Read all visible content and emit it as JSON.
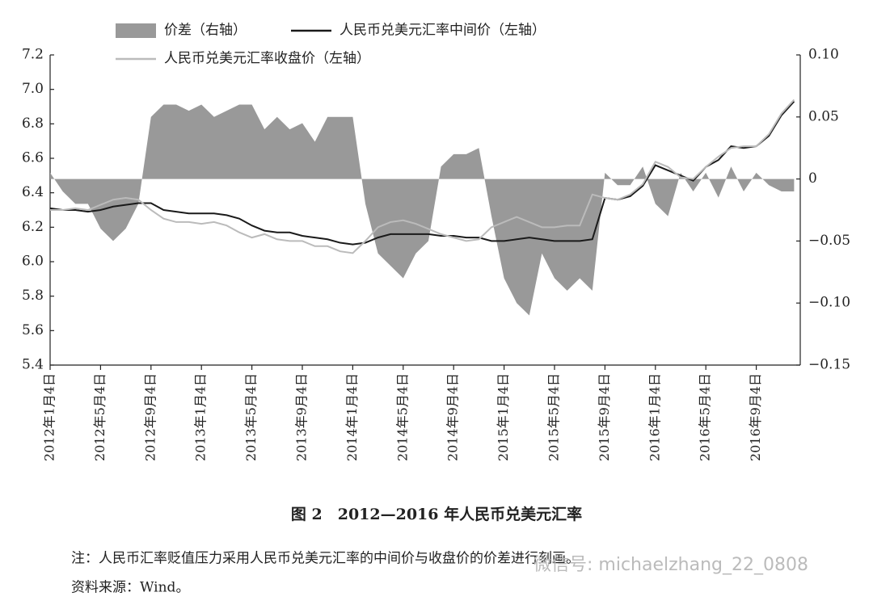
{
  "chart_data": {
    "type": "line",
    "title": "图 2　2012—2016 年人民币兑美元汇率",
    "note": "注：人民币汇率贬值压力采用人民币兑美元汇率的中间价与收盘价的价差进行刻画。",
    "source": "资料来源：Wind。",
    "watermark": "微信号: michaelzhang_22_0808",
    "categories": [
      "2012年1月4日",
      null,
      null,
      null,
      "2012年5月4日",
      null,
      null,
      null,
      "2012年9月4日",
      null,
      null,
      null,
      "2013年1月4日",
      null,
      null,
      null,
      "2013年5月4日",
      null,
      null,
      null,
      "2013年9月4日",
      null,
      null,
      null,
      "2014年1月4日",
      null,
      null,
      null,
      "2014年5月4日",
      null,
      null,
      null,
      "2014年9月4日",
      null,
      null,
      null,
      "2015年1月4日",
      null,
      null,
      null,
      "2015年5月4日",
      null,
      null,
      null,
      "2015年9月4日",
      null,
      null,
      null,
      "2016年1月4日",
      null,
      null,
      null,
      "2016年5月4日",
      null,
      null,
      null,
      "2016年9月4日",
      null,
      null,
      null
    ],
    "ylim": [
      5.4,
      7.2
    ],
    "yticks": [
      5.4,
      5.6,
      5.8,
      {
        "value": 6,
        "label": "6.0"
      },
      6.2,
      6.4,
      6.6,
      6.8,
      {
        "value": 7,
        "label": "7.0"
      },
      7.2
    ],
    "y2lim": [
      -0.15,
      0.1
    ],
    "y2ticks": [
      {
        "value": -0.15,
        "label": "−0.15"
      },
      {
        "value": -0.1,
        "label": "−0.10"
      },
      {
        "value": -0.05,
        "label": "−0.05"
      },
      0,
      0.05,
      {
        "value": 0.1,
        "label": "0.10"
      }
    ],
    "grid": false,
    "series": [
      {
        "name": "价差（右轴）",
        "type": "area",
        "axis": "y2",
        "color": "#999999",
        "values": [
          0.005,
          -0.01,
          -0.02,
          -0.02,
          -0.04,
          -0.05,
          -0.04,
          -0.02,
          0.05,
          0.06,
          0.06,
          0.055,
          0.06,
          0.05,
          0.055,
          0.06,
          0.06,
          0.04,
          0.05,
          0.04,
          0.045,
          0.03,
          0.05,
          0.05,
          0.05,
          -0.02,
          -0.06,
          -0.07,
          -0.08,
          -0.06,
          -0.05,
          0.01,
          0.02,
          0.02,
          0.025,
          -0.03,
          -0.08,
          -0.1,
          -0.11,
          -0.06,
          -0.08,
          -0.09,
          -0.08,
          -0.09,
          0.005,
          -0.005,
          -0.005,
          0.01,
          -0.02,
          -0.03,
          0.005,
          -0.01,
          0.005,
          -0.015,
          0.01,
          -0.01,
          0.005,
          -0.005,
          -0.01,
          -0.01
        ]
      },
      {
        "name": "人民币兑美元汇率中间价（左轴）",
        "type": "line",
        "color": "#1a1a1a",
        "values": [
          6.31,
          6.3,
          6.3,
          6.29,
          6.3,
          6.32,
          6.33,
          6.34,
          6.34,
          6.3,
          6.29,
          6.28,
          6.28,
          6.28,
          6.27,
          6.25,
          6.21,
          6.18,
          6.17,
          6.17,
          6.15,
          6.14,
          6.13,
          6.11,
          6.1,
          6.11,
          6.14,
          6.16,
          6.16,
          6.16,
          6.16,
          6.15,
          6.15,
          6.14,
          6.14,
          6.12,
          6.12,
          6.13,
          6.14,
          6.13,
          6.12,
          6.12,
          6.12,
          6.13,
          6.37,
          6.36,
          6.38,
          6.44,
          6.56,
          6.53,
          6.5,
          6.47,
          6.55,
          6.59,
          6.67,
          6.66,
          6.67,
          6.73,
          6.85,
          6.93
        ]
      },
      {
        "name": "人民币兑美元汇率收盘价（左轴）",
        "type": "line",
        "color": "#bbbbbb",
        "values": [
          6.3,
          6.3,
          6.31,
          6.3,
          6.33,
          6.36,
          6.37,
          6.36,
          6.3,
          6.25,
          6.23,
          6.23,
          6.22,
          6.23,
          6.21,
          6.17,
          6.14,
          6.16,
          6.13,
          6.12,
          6.12,
          6.09,
          6.09,
          6.06,
          6.05,
          6.12,
          6.2,
          6.23,
          6.24,
          6.22,
          6.19,
          6.16,
          6.14,
          6.12,
          6.13,
          6.2,
          6.23,
          6.26,
          6.23,
          6.2,
          6.2,
          6.21,
          6.21,
          6.39,
          6.37,
          6.36,
          6.39,
          6.45,
          6.58,
          6.55,
          6.49,
          6.48,
          6.55,
          6.61,
          6.66,
          6.67,
          6.67,
          6.74,
          6.86,
          6.94
        ]
      }
    ]
  }
}
